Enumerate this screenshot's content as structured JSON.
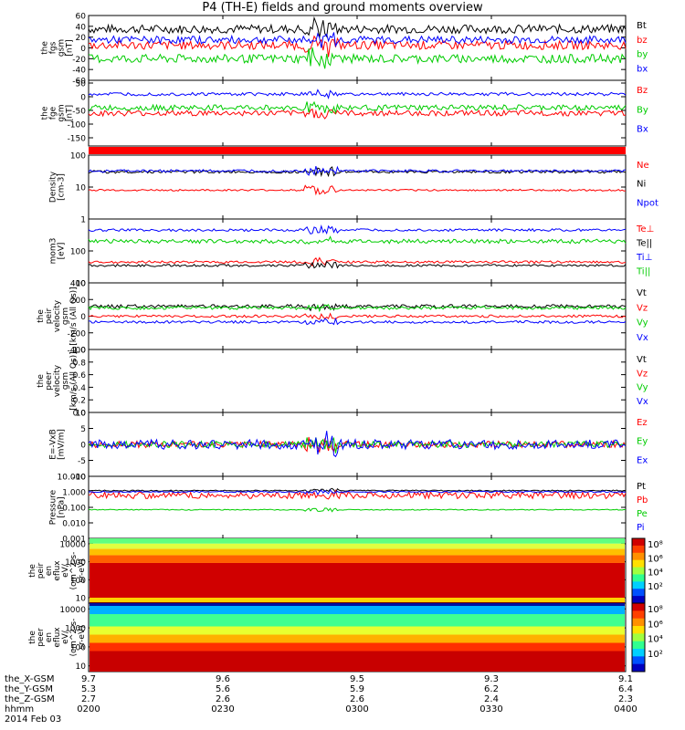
{
  "title": "P4 (TH-E) fields and ground moments overview",
  "chart_data": [
    {
      "type": "line",
      "panel": "fgs-gsm",
      "ylabel": [
        "the",
        "fgs",
        "gsm",
        "[nT]"
      ],
      "ylim": [
        -60,
        60
      ],
      "yticks": [
        "60",
        "40",
        "20",
        "0",
        "-20",
        "-40",
        "-60"
      ],
      "ytick_values": [
        60,
        40,
        20,
        0,
        -20,
        -40,
        -60
      ],
      "series": [
        {
          "name": "Bt",
          "color": "#000000",
          "base": 35,
          "noise": 8
        },
        {
          "name": "bz",
          "color": "#ff0000",
          "base": 5,
          "noise": 8
        },
        {
          "name": "by",
          "color": "#00cc00",
          "base": -20,
          "noise": 8
        },
        {
          "name": "bx",
          "color": "#0000ff",
          "base": 15,
          "noise": 7
        }
      ]
    },
    {
      "type": "line",
      "panel": "fge-gsm",
      "ylabel": [
        "the",
        "fge",
        "gsm",
        "[nT]"
      ],
      "ylim": [
        -180,
        60
      ],
      "yticks": [
        "50",
        "0",
        "-50",
        "-100",
        "-150"
      ],
      "ytick_values": [
        50,
        0,
        -50,
        -100,
        -150
      ],
      "series": [
        {
          "name": "Bz",
          "color": "#ff0000",
          "base": -60,
          "noise": 10
        },
        {
          "name": "By",
          "color": "#00cc00",
          "base": -40,
          "noise": 10
        },
        {
          "name": "Bx",
          "color": "#0000ff",
          "base": 10,
          "noise": 6
        }
      ]
    },
    {
      "type": "bar_strip",
      "panel": "flag",
      "color": "#ff0000"
    },
    {
      "type": "line",
      "panel": "density",
      "scale": "log",
      "ylabel": [
        "Density",
        "[cm-3]"
      ],
      "ylim": [
        1,
        100
      ],
      "yticks": [
        "100",
        "10",
        "1"
      ],
      "ytick_values": [
        100,
        10,
        1
      ],
      "series": [
        {
          "name": "Ne",
          "color": "#ff0000",
          "base": 8,
          "noise": 0.5
        },
        {
          "name": "Ni",
          "color": "#000000",
          "base": 30,
          "noise": 3
        },
        {
          "name": "Npot",
          "color": "#0000ff",
          "base": 32,
          "noise": 3
        }
      ]
    },
    {
      "type": "line",
      "panel": "temperature",
      "scale": "log",
      "ylabel": [
        "mom3",
        "[eV]"
      ],
      "ylim": [
        10,
        1000
      ],
      "yticks": [
        "100",
        "10"
      ],
      "ytick_values": [
        100,
        10
      ],
      "series": [
        {
          "name": "Te⊥",
          "color": "#ff0000",
          "base": 45,
          "noise": 4
        },
        {
          "name": "Te||",
          "color": "#000000",
          "base": 35,
          "noise": 3
        },
        {
          "name": "Ti⊥",
          "color": "#0000ff",
          "base": 450,
          "noise": 40
        },
        {
          "name": "Ti||",
          "color": "#00cc00",
          "base": 200,
          "noise": 30
        }
      ]
    },
    {
      "type": "line",
      "panel": "peir-velocity",
      "ylabel": [
        "the",
        "peir",
        "velocity",
        "gsm",
        "[km/s (All Qs)]"
      ],
      "ylim": [
        -400,
        400
      ],
      "yticks": [
        "400",
        "200",
        "0",
        "-200",
        "-400"
      ],
      "ytick_values": [
        400,
        200,
        0,
        -200,
        -400
      ],
      "series": [
        {
          "name": "Vt",
          "color": "#000000",
          "base": 120,
          "noise": 20
        },
        {
          "name": "Vz",
          "color": "#ff0000",
          "base": 0,
          "noise": 15
        },
        {
          "name": "Vy",
          "color": "#00cc00",
          "base": 100,
          "noise": 20
        },
        {
          "name": "Vx",
          "color": "#0000ff",
          "base": -70,
          "noise": 15
        }
      ]
    },
    {
      "type": "line",
      "panel": "peer-velocity",
      "ylabel": [
        "the",
        "peer",
        "velocity",
        "gsm",
        "[km/s (All Qs)]"
      ],
      "ylim": [
        0,
        1
      ],
      "yticks": [
        "1.0",
        "0.8",
        "0.6",
        "0.4",
        "0.2",
        "0.0"
      ],
      "ytick_values": [
        1,
        0.8,
        0.6,
        0.4,
        0.2,
        0
      ],
      "series": [
        {
          "name": "Vt",
          "color": "#000000"
        },
        {
          "name": "Vz",
          "color": "#ff0000"
        },
        {
          "name": "Vy",
          "color": "#00cc00"
        },
        {
          "name": "Vx",
          "color": "#0000ff"
        }
      ]
    },
    {
      "type": "line",
      "panel": "efield",
      "ylabel": [
        "E=-VxB",
        "[mV/m]"
      ],
      "ylim": [
        -10,
        10
      ],
      "yticks": [
        "10",
        "5",
        "0",
        "-5",
        "-10"
      ],
      "ytick_values": [
        10,
        5,
        0,
        -5,
        -10
      ],
      "series": [
        {
          "name": "Ez",
          "color": "#ff0000",
          "base": 0,
          "noise": 1
        },
        {
          "name": "Ey",
          "color": "#00cc00",
          "base": 0,
          "noise": 1
        },
        {
          "name": "Ex",
          "color": "#0000ff",
          "base": 0,
          "noise": 1.5
        }
      ]
    },
    {
      "type": "line",
      "panel": "pressure",
      "scale": "log",
      "ylabel": [
        "Pressure",
        "[nPa]"
      ],
      "ylim": [
        0.001,
        10
      ],
      "yticks": [
        "10.000",
        "1.000",
        "0.100",
        "0.010",
        "0.001"
      ],
      "ytick_values": [
        10,
        1,
        0.1,
        0.01,
        0.001
      ],
      "series": [
        {
          "name": "Pt",
          "color": "#000000",
          "base": 1.2,
          "noise": 0.1
        },
        {
          "name": "Pb",
          "color": "#ff0000",
          "base": 0.6,
          "noise": 0.3
        },
        {
          "name": "Pe",
          "color": "#00cc00",
          "base": 0.07,
          "noise": 0.005
        },
        {
          "name": "Pi",
          "color": "#0000ff",
          "base": 1.0,
          "noise": 0.1
        }
      ]
    },
    {
      "type": "heatmap",
      "panel": "peir-en-eflux",
      "ylabel": [
        "the",
        "peir",
        "en",
        "eflux",
        "eV/",
        "(cm^2-s-",
        "sr-eV)"
      ],
      "scale": "log",
      "ylim": [
        5,
        20000
      ],
      "yticks": [
        "10000",
        "1000",
        "100",
        "10"
      ],
      "ytick_values": [
        10000,
        1000,
        100,
        10
      ],
      "colorbar": {
        "ticks": [
          "10",
          "10",
          "10",
          "10",
          "10"
        ],
        "exponents": [
          "8",
          "6",
          "4",
          "2",
          ""
        ],
        "labels": [
          "10⁸",
          "10⁶",
          "10⁴",
          "10²"
        ]
      }
    },
    {
      "type": "heatmap",
      "panel": "peer-en-eflux",
      "ylabel": [
        "the",
        "peer",
        "en",
        "eflux",
        "eV/",
        "(cm^2-s-",
        "sr-eV)"
      ],
      "scale": "log",
      "ylim": [
        5,
        20000
      ],
      "yticks": [
        "10000",
        "1000",
        "100",
        "10"
      ],
      "ytick_values": [
        10000,
        1000,
        100,
        10
      ],
      "colorbar": {
        "labels": [
          "10⁸",
          "10⁶",
          "10⁴",
          "10²"
        ]
      }
    }
  ],
  "xaxis": {
    "rows": [
      {
        "label": "the_X-GSM",
        "values": [
          "9.7",
          "9.6",
          "9.5",
          "9.3",
          "9.1"
        ]
      },
      {
        "label": "the_Y-GSM",
        "values": [
          "5.3",
          "5.6",
          "5.9",
          "6.2",
          "6.4"
        ]
      },
      {
        "label": "the_Z-GSM",
        "values": [
          "2.7",
          "2.6",
          "2.6",
          "2.4",
          "2.3"
        ]
      },
      {
        "label": "hhmm",
        "values": [
          "0200",
          "0230",
          "0300",
          "0330",
          "0400"
        ]
      }
    ],
    "date": "2014 Feb 03"
  }
}
